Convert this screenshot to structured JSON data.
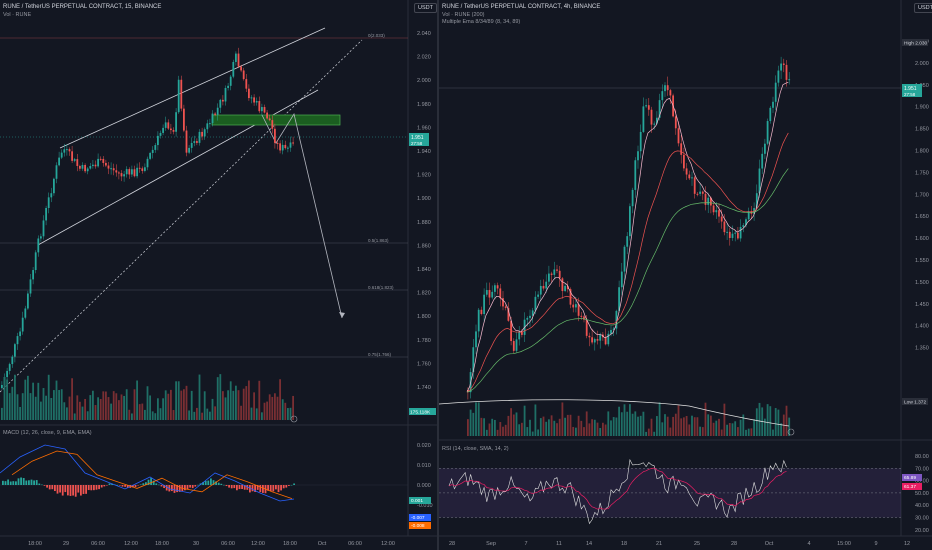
{
  "left_chart": {
    "title": "RUNE / TetherUS PERPETUAL CONTRACT, 15, BINANCE",
    "vol_label": "Vol · RUNE",
    "currency": "USDT",
    "price_ticks": [
      "2.040",
      "2.020",
      "2.000",
      "1.980",
      "1.960",
      "1.940",
      "1.920",
      "1.900",
      "1.880",
      "1.860",
      "1.840",
      "1.820",
      "1.800",
      "1.780",
      "1.760",
      "1.740"
    ],
    "price_tag": {
      "value": "1.951",
      "sub": "27:58",
      "color": "#26a69a"
    },
    "vol_tag": {
      "value": "175.118K",
      "color": "#26a69a"
    },
    "fib_labels": [
      "0(2.033)",
      "0.5(1.863)",
      "0.618(1.823)",
      "0.75(1.766)"
    ],
    "time_labels": [
      "18:00",
      "29",
      "06:00",
      "12:00",
      "18:00",
      "30",
      "06:00",
      "12:00",
      "18:00",
      "Oct",
      "06:00",
      "12:00"
    ],
    "macd_label": "MACD (12, 26, close, 9, EMA, EMA)",
    "macd_ticks": [
      "0.020",
      "0.010",
      "0.000",
      "-0.010"
    ],
    "macd_tags": [
      {
        "value": "0.001",
        "color": "#26a69a"
      },
      {
        "value": "-0.007",
        "color": "#2962ff"
      },
      {
        "value": "-0.008",
        "color": "#ff6d00"
      }
    ],
    "swatches": {
      "channel": "#d1d4dc",
      "zone": "#1b5e20",
      "candle_up": "#26a69a",
      "candle_down": "#ef5350"
    }
  },
  "right_chart": {
    "title": "RUNE / TetherUS PERPETUAL CONTRACT, 4h, BINANCE",
    "vol_label": "Vol · RUNE (200)",
    "ema_label": "Multiple Ema 8/34/89 (8, 34, 89)",
    "currency": "USDT",
    "price_ticks": [
      "2.050",
      "2.000",
      "1.950",
      "1.900",
      "1.850",
      "1.800",
      "1.750",
      "1.700",
      "1.650",
      "1.600",
      "1.550",
      "1.500",
      "1.450",
      "1.400",
      "1.350"
    ],
    "high_tag": {
      "label": "High",
      "value": "2.030"
    },
    "low_tag": {
      "label": "Low",
      "value": "1.372"
    },
    "price_tag": {
      "value": "1.951",
      "sub": "27:58",
      "color": "#26a69a"
    },
    "time_labels": [
      "28",
      "Sep",
      "7",
      "11",
      "14",
      "18",
      "21",
      "25",
      "28",
      "Oct",
      "4",
      "15:00",
      "9",
      "12"
    ],
    "rsi_label": "RSI (14, close, SMA, 14, 2)",
    "rsi_ticks": [
      "80.00",
      "70.00",
      "60.00",
      "50.00",
      "40.00",
      "30.00",
      "20.00"
    ],
    "rsi_tags": [
      {
        "value": "65.89",
        "color": "#7e57c2"
      },
      {
        "value": "61.37",
        "color": "#e91e63"
      }
    ],
    "swatches": {
      "ema8": "#e040fb",
      "ema34": "#ef5350",
      "ema89": "#66bb6a",
      "rsi_band": "#7e57c2"
    }
  }
}
